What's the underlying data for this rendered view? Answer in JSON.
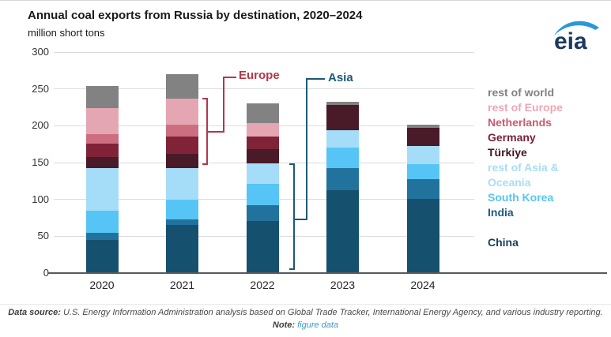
{
  "header": {
    "title": "Annual coal exports from Russia by destination, 2020–2024",
    "units": "million short tons",
    "logo_text": "eia",
    "logo_text_color": "#1b3a5e",
    "logo_swoosh_color": "#2b99d8"
  },
  "chart_data": {
    "type": "bar",
    "stacked": true,
    "title": "Annual coal exports from Russia by destination, 2020–2024",
    "ylabel": "million short tons",
    "categories": [
      "2020",
      "2021",
      "2022",
      "2023",
      "2024"
    ],
    "ylim": [
      0,
      300
    ],
    "yticks": [
      0,
      50,
      100,
      150,
      200,
      250,
      300
    ],
    "grid": true,
    "legend_position": "right",
    "series": [
      {
        "name": "China",
        "color": "#15506e",
        "values": [
          45,
          65,
          71,
          112,
          101
        ]
      },
      {
        "name": "India",
        "color": "#22729e",
        "values": [
          10,
          8,
          21,
          30,
          27
        ]
      },
      {
        "name": "South Korea",
        "color": "#56c5f5",
        "values": [
          30,
          27,
          29,
          28,
          20
        ]
      },
      {
        "name": "rest of Asia & Oceania",
        "color": "#a5ddf8",
        "values": [
          57,
          42,
          28,
          24,
          24
        ]
      },
      {
        "name": "Türkiye",
        "color": "#491a28",
        "values": [
          16,
          20,
          19,
          34,
          25
        ]
      },
      {
        "name": "Germany",
        "color": "#802338",
        "values": [
          18,
          23,
          17,
          0,
          0
        ]
      },
      {
        "name": "Netherlands",
        "color": "#cc6e80",
        "values": [
          13,
          16,
          0,
          0,
          0
        ]
      },
      {
        "name": "rest of Europe",
        "color": "#e4a6b2",
        "values": [
          35,
          36,
          19,
          0,
          0
        ]
      },
      {
        "name": "rest of world",
        "color": "#828282",
        "values": [
          30,
          33,
          26,
          5,
          4
        ]
      }
    ],
    "annotations": {
      "europe": {
        "label": "Europe",
        "color": "#b23848"
      },
      "asia": {
        "label": "Asia",
        "color": "#1d5878"
      }
    }
  },
  "legend": {
    "items": [
      {
        "label": "rest of world",
        "color": "#828282"
      },
      {
        "label": "rest of Europe",
        "color": "#eba7b6"
      },
      {
        "label": "Netherlands",
        "color": "#c85a6e"
      },
      {
        "label": "Germany",
        "color": "#7a2137"
      },
      {
        "label": "Türkiye",
        "color": "#401622"
      },
      {
        "label": "rest of Asia & Oceania",
        "color": "#a8ddf8"
      },
      {
        "label": "South Korea",
        "color": "#56c5f5"
      },
      {
        "label": "India",
        "color": "#1d5b80"
      },
      {
        "label": "China",
        "color": "#163f5c",
        "gap_above": true
      }
    ]
  },
  "footer": {
    "source_label": "Data source:",
    "source_text": " U.S. Energy Information Administration analysis based on Global Trade Tracker, International Energy Agency, and various industry reporting.",
    "note_label": "Note:",
    "note_link": "figure data"
  }
}
